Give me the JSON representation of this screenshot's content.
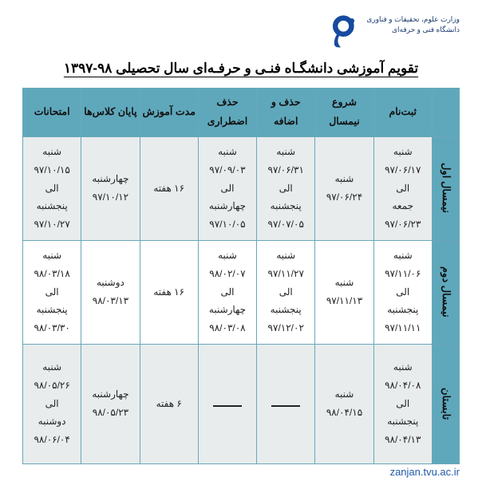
{
  "header": {
    "ministry": "وزارت علوم، تحقیقات و فناوری",
    "university": "دانشگاه فنی و حرفه‌ای"
  },
  "title": "تقویم آموزشی دانشگـاه فنـی و حرفـه‌ای سال تحصیلی ۹۸-۱۳۹۷",
  "columns": [
    "ثبت‌نام",
    "شروع نیمسال",
    "حذف و اضافه",
    "حذف اضطراری",
    "مدت آموزش",
    "پایان کلاس‌ها",
    "امتحانات"
  ],
  "rows": [
    {
      "label": "نیمسال اول",
      "cells": [
        "شنبه\n۹۷/۰۶/۱۷\nالی\nجمعه\n۹۷/۰۶/۲۳",
        "شنبه\n۹۷/۰۶/۲۴",
        "شنبه\n۹۷/۰۶/۳۱\nالی\nپنجشنبه\n۹۷/۰۷/۰۵",
        "شنبه\n۹۷/۰۹/۰۳\nالی\nچهارشنبه\n۹۷/۱۰/۰۵",
        "۱۶ هفته",
        "چهارشنبه\n۹۷/۱۰/۱۲",
        "شنبه\n۹۷/۱۰/۱۵\nالی\nپنجشنبه\n۹۷/۱۰/۲۷"
      ]
    },
    {
      "label": "نیمسال دوم",
      "cells": [
        "شنبه\n۹۷/۱۱/۰۶\nالی\nپنجشنبه\n۹۷/۱۱/۱۱",
        "شنبه\n۹۷/۱۱/۱۳",
        "شنبه\n۹۷/۱۱/۲۷\nالی\nپنجشنبه\n۹۷/۱۲/۰۲",
        "شنبه\n۹۸/۰۲/۰۷\nالی\nچهارشنبه\n۹۸/۰۳/۰۸",
        "۱۶ هفته",
        "دوشنبه\n۹۸/۰۳/۱۳",
        "شنبه\n۹۸/۰۳/۱۸\nالی\nپنجشنبه\n۹۸/۰۳/۳۰"
      ]
    },
    {
      "label": "تابستان",
      "cells": [
        "شنبه\n۹۸/۰۴/۰۸\nالی\nپنجشنبه\n۹۸/۰۴/۱۳",
        "شنبه\n۹۸/۰۴/۱۵",
        "—",
        "—",
        "۶ هفته",
        "چهارشنبه\n۹۸/۰۵/۲۳",
        "شنبه\n۹۸/۰۵/۲۶\nالی\nدوشنبه\n۹۸/۰۶/۰۴"
      ]
    }
  ],
  "footer": "zanjan.tvu.ac.ir",
  "colors": {
    "header_bg": "#5fa8bc",
    "border": "#6aa7b8",
    "row_odd_bg": "#e8eced",
    "row_even_bg": "#ffffff",
    "logo_primary": "#164a9e",
    "footer_color": "#1f5aa8"
  }
}
